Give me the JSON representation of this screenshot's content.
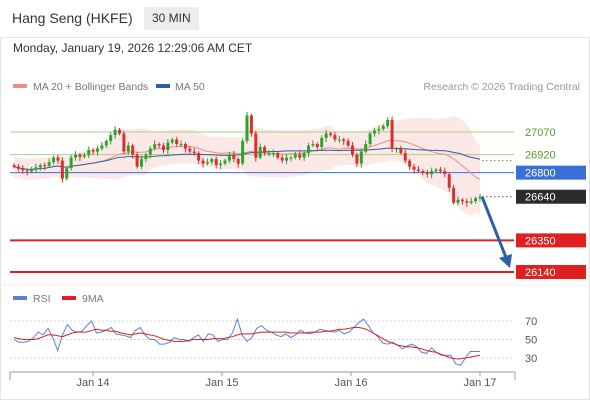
{
  "header": {
    "title": "Hang Seng (HKFE)",
    "timeframe": "30 MIN"
  },
  "timestamp": "Monday, January 19, 2026 12:29:06 AM CET",
  "legend": {
    "bb_label": "MA 20 + Bollinger Bands",
    "ma50_label": "MA 50",
    "credit": "Research © 2026 Trading Central"
  },
  "rsi_legend": {
    "rsi_label": "RSI",
    "ma_label": "9MA"
  },
  "colors": {
    "bb": "#f08b8b",
    "bbFill": "#fde6e6",
    "ma50": "#2d5f9e",
    "green": "#a9d27a",
    "blue": "#3a6fd8",
    "red": "#e02020",
    "dark": "#2b2b2b",
    "candleUp": "#2aa52a",
    "candleDown": "#d63030",
    "rsi": "#5a80d8",
    "rsiMa": "#e02020",
    "arrow": "#2b5fa8"
  },
  "chart_data": [
    {
      "type": "candlestick",
      "x_ticks": [
        "Jan 14",
        "Jan 15",
        "Jan 16",
        "Jan 17"
      ],
      "y_ticks": [
        27070,
        26920,
        26800,
        26640,
        26350,
        26140
      ],
      "levels": [
        {
          "value": 27070,
          "label": "27070",
          "style": "green"
        },
        {
          "value": 26920,
          "label": "26920",
          "style": "green"
        },
        {
          "value": 26800,
          "label": "26800",
          "style": "blue"
        },
        {
          "value": 26640,
          "label": "26640",
          "style": "dark"
        },
        {
          "value": 26350,
          "label": "26350",
          "style": "red"
        },
        {
          "value": 26140,
          "label": "26140",
          "style": "red"
        }
      ],
      "close": [
        26840,
        26825,
        26815,
        26808,
        26820,
        26835,
        26850,
        26845,
        26870,
        26900,
        26880,
        26760,
        26830,
        26900,
        26920,
        26905,
        26915,
        26950,
        26940,
        26960,
        26980,
        27010,
        27050,
        27085,
        27060,
        26940,
        26980,
        26920,
        26840,
        26890,
        26920,
        26960,
        26990,
        26980,
        26950,
        27000,
        27020,
        26990,
        26990,
        26960,
        26940,
        26930,
        26880,
        26860,
        26870,
        26890,
        26850,
        26860,
        26880,
        26920,
        26890,
        26860,
        27010,
        27180,
        27060,
        26900,
        26970,
        26930,
        26930,
        26930,
        26900,
        26880,
        26900,
        26900,
        26920,
        26900,
        26930,
        26980,
        26990,
        26970,
        27030,
        27060,
        27050,
        27020,
        27020,
        27010,
        26980,
        26920,
        26860,
        26940,
        26990,
        27060,
        27080,
        27090,
        27110,
        27150,
        26960,
        26960,
        26930,
        26880,
        26840,
        26820,
        26810,
        26800,
        26790,
        26810,
        26820,
        26810,
        26790,
        26700,
        26600,
        26620,
        26610,
        26600,
        26610,
        26630,
        26640
      ],
      "ylim": [
        26050,
        27300
      ],
      "series": [
        {
          "name": "MA 20 + Bollinger Bands",
          "values": []
        },
        {
          "name": "MA 50",
          "values": []
        }
      ]
    },
    {
      "type": "line",
      "y_ticks": [
        70,
        50,
        30
      ],
      "ylim": [
        10,
        85
      ],
      "series": [
        {
          "name": "RSI",
          "values": [
            50,
            47,
            47,
            48,
            52,
            58,
            55,
            62,
            52,
            38,
            55,
            66,
            60,
            58,
            59,
            65,
            70,
            57,
            58,
            60,
            63,
            56,
            55,
            54,
            52,
            60,
            63,
            55,
            50,
            50,
            45,
            45,
            47,
            52,
            50,
            50,
            48,
            52,
            55,
            48,
            56,
            55,
            48,
            50,
            50,
            57,
            72,
            55,
            48,
            52,
            62,
            65,
            60,
            58,
            55,
            53,
            56,
            52,
            55,
            60,
            57,
            56,
            58,
            61,
            60,
            59,
            58,
            60,
            56,
            58,
            63,
            68,
            72,
            65,
            57,
            53,
            46,
            45,
            47,
            44,
            40,
            43,
            45,
            42,
            36,
            35,
            41,
            36,
            33,
            33,
            33,
            24,
            22,
            30,
            37,
            37,
            37
          ]
        },
        {
          "name": "9MA",
          "values": [
            52,
            51,
            50,
            50,
            50,
            51,
            53,
            55,
            55,
            54,
            53,
            55,
            57,
            58,
            58,
            58,
            60,
            61,
            60,
            60,
            59,
            59,
            57,
            56,
            55,
            56,
            57,
            56,
            55,
            54,
            52,
            50,
            49,
            48,
            48,
            48,
            49,
            50,
            50,
            50,
            50,
            51,
            51,
            51,
            52,
            53,
            55,
            56,
            56,
            56,
            57,
            58,
            58,
            58,
            58,
            58,
            58,
            57,
            57,
            57,
            57,
            58,
            58,
            58,
            59,
            59,
            60,
            61,
            61,
            62,
            63,
            63,
            62,
            60,
            57,
            54,
            51,
            48,
            46,
            44,
            43,
            42,
            42,
            41,
            40,
            38,
            37,
            36,
            34,
            32,
            30,
            29,
            29,
            30,
            31,
            32,
            33
          ]
        }
      ]
    }
  ]
}
